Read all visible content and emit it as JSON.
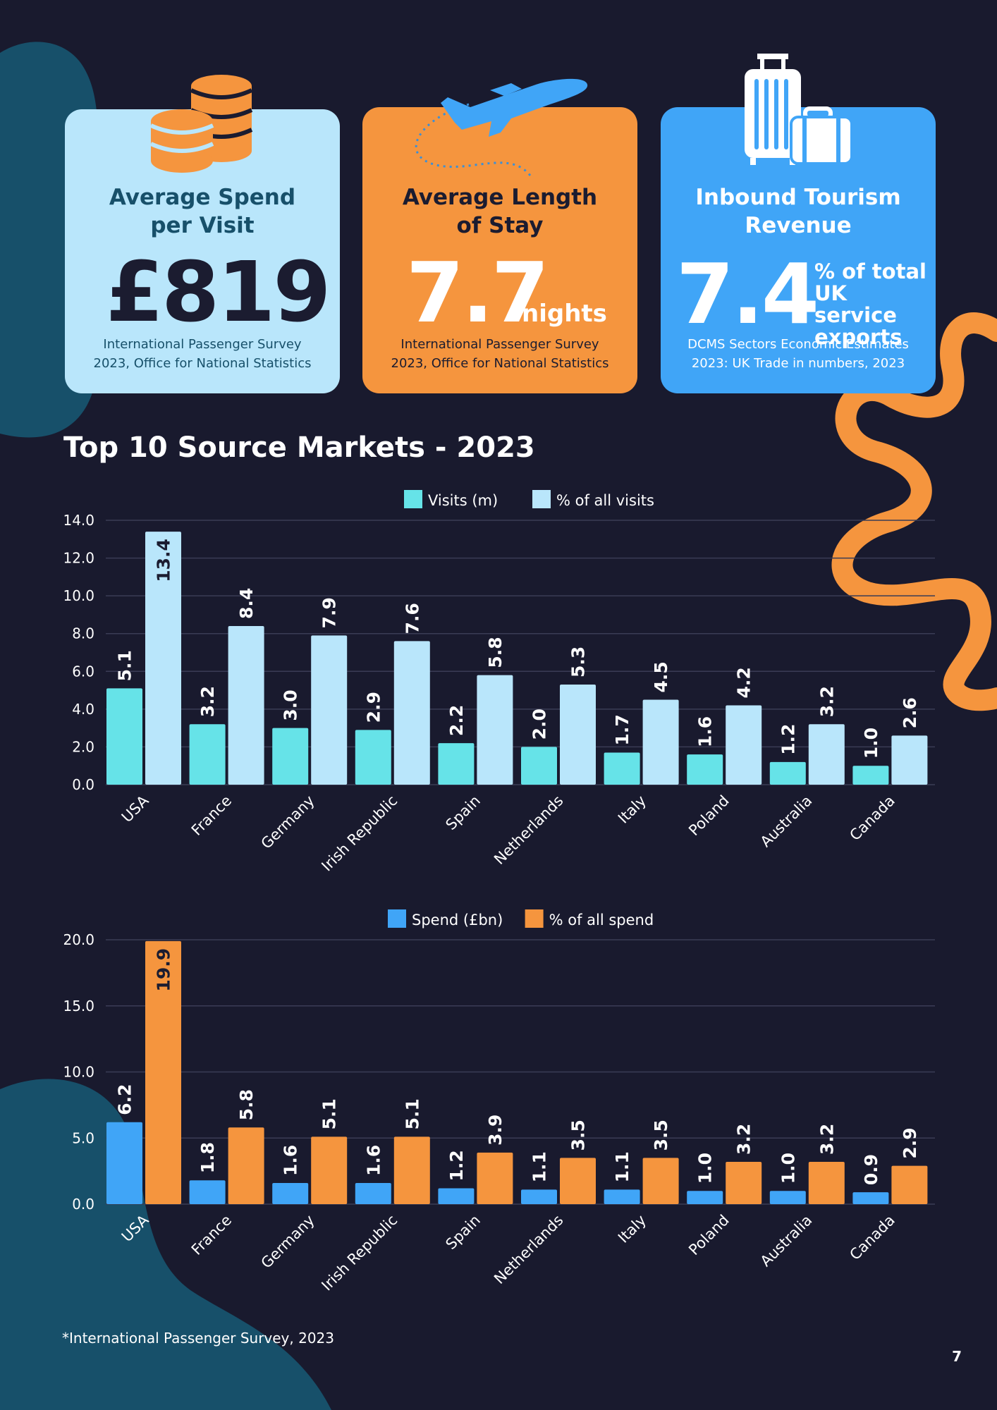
{
  "colors": {
    "background": "#191a2e",
    "visits": "#66e3e8",
    "visits_pct": "#b9e6fb",
    "spend": "#40a5f7",
    "spend_pct": "#f5953e",
    "teal_shape": "#17506a",
    "orange_ribbon": "#f5953e"
  },
  "cards": {
    "spend": {
      "icon": "coins-icon",
      "title_line1": "Average Spend",
      "title_line2": "per Visit",
      "value": "£819",
      "source_line1": "International Passenger Survey",
      "source_line2": "2023, Office for National Statistics"
    },
    "stay": {
      "icon": "airplane-icon",
      "title_line1": "Average Length",
      "title_line2": "of Stay",
      "value": "7.7",
      "unit": "nights",
      "source_line1": "International Passenger Survey",
      "source_line2": "2023, Office for National Statistics"
    },
    "revenue": {
      "icon": "luggage-icon",
      "title_line1": "Inbound Tourism",
      "title_line2": "Revenue",
      "value": "7.4",
      "unit_line1": "% of total",
      "unit_line2": "UK service",
      "unit_line3": "exports",
      "source_line1": "DCMS Sectors Economic Estimates",
      "source_line2": "2023: UK Trade in numbers, 2023"
    }
  },
  "section_title": "Top 10 Source Markets - 2023",
  "chart_data": [
    {
      "type": "bar",
      "categories": [
        "USA",
        "France",
        "Germany",
        "Irish Republic",
        "Spain",
        "Netherlands",
        "Italy",
        "Poland",
        "Australia",
        "Canada"
      ],
      "series": [
        {
          "name": "Visits (m)",
          "values": [
            5.1,
            3.2,
            3.0,
            2.9,
            2.2,
            2.0,
            1.7,
            1.6,
            1.2,
            1.0
          ]
        },
        {
          "name": "% of all visits",
          "values": [
            13.4,
            8.4,
            7.9,
            7.6,
            5.8,
            5.3,
            4.5,
            4.2,
            3.2,
            2.6
          ]
        }
      ],
      "yticks": [
        "0.0",
        "2.0",
        "4.0",
        "6.0",
        "8.0",
        "10.0",
        "12.0",
        "14.0"
      ],
      "ylim": [
        0,
        14
      ],
      "grid": true,
      "legend": "top-center"
    },
    {
      "type": "bar",
      "categories": [
        "USA",
        "France",
        "Germany",
        "Irish Republic",
        "Spain",
        "Netherlands",
        "Italy",
        "Poland",
        "Australia",
        "Canada"
      ],
      "series": [
        {
          "name": "Spend (£bn)",
          "values": [
            6.2,
            1.8,
            1.6,
            1.6,
            1.2,
            1.1,
            1.1,
            1.0,
            1.0,
            0.9
          ]
        },
        {
          "name": "% of all spend",
          "values": [
            19.9,
            5.8,
            5.1,
            5.1,
            3.9,
            3.5,
            3.5,
            3.2,
            3.2,
            2.9
          ]
        }
      ],
      "yticks": [
        "0.0",
        "5.0",
        "10.0",
        "15.0",
        "20.0"
      ],
      "ylim": [
        0,
        20
      ],
      "grid": true,
      "legend": "top-center"
    }
  ],
  "footnote": "*International Passenger Survey, 2023",
  "page_number": "7"
}
